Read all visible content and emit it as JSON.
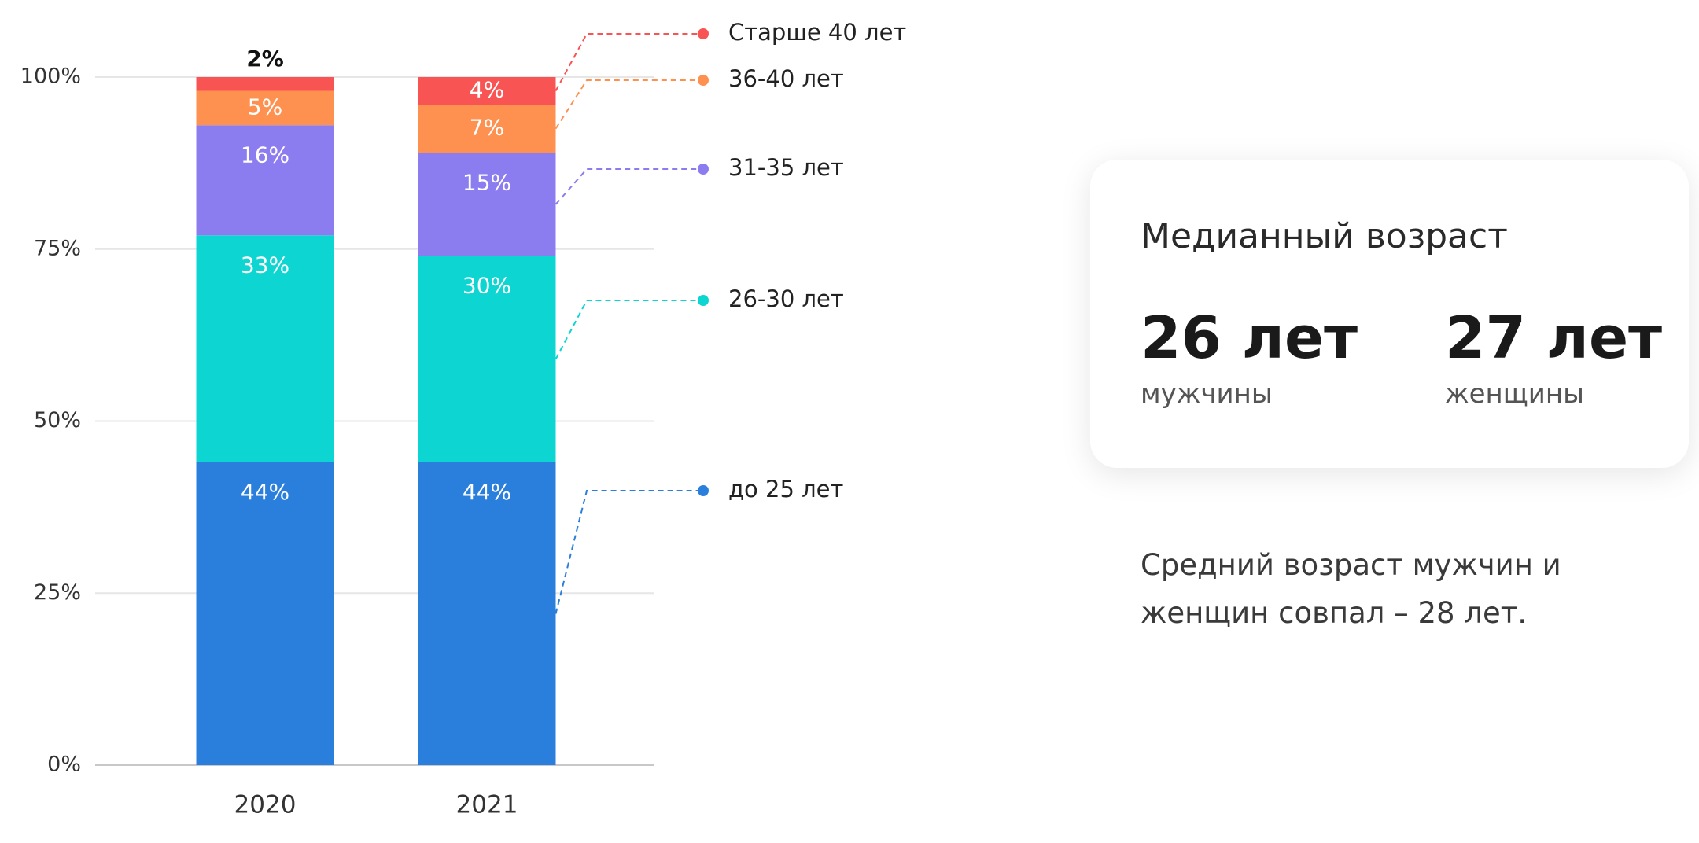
{
  "chart_data": {
    "type": "stacked_bar",
    "categories": [
      "2020",
      "2021"
    ],
    "series": [
      {
        "name": "до 25 лет",
        "color": "#2b7fdc",
        "values": [
          44,
          44
        ],
        "value_labels": [
          "44%",
          "44%"
        ]
      },
      {
        "name": "26-30 лет",
        "color": "#0dd5d1",
        "values": [
          33,
          30
        ],
        "value_labels": [
          "33%",
          "30%"
        ]
      },
      {
        "name": "31-35 лет",
        "color": "#8b7cf0",
        "values": [
          16,
          15
        ],
        "value_labels": [
          "16%",
          "15%"
        ]
      },
      {
        "name": "36-40 лет",
        "color": "#ff9150",
        "values": [
          5,
          7
        ],
        "value_labels": [
          "5%",
          "7%"
        ]
      },
      {
        "name": "Старше 40 лет",
        "color": "#f95454",
        "values": [
          2,
          4
        ],
        "value_labels": [
          "2%",
          "4%"
        ]
      }
    ],
    "ylim": [
      0,
      100
    ],
    "yticks": [
      {
        "value": 0,
        "label": "0%"
      },
      {
        "value": 25,
        "label": "25%"
      },
      {
        "value": 50,
        "label": "50%"
      },
      {
        "value": 75,
        "label": "75%"
      },
      {
        "value": 100,
        "label": "100%"
      }
    ],
    "grid": true
  },
  "median_card": {
    "title": "Медианный возраст",
    "items": [
      {
        "value": "26 лет",
        "label": "мужчины"
      },
      {
        "value": "27 лет",
        "label": "женщины"
      }
    ]
  },
  "note": "Средний возраст мужчин и женщин совпал – 28 лет."
}
